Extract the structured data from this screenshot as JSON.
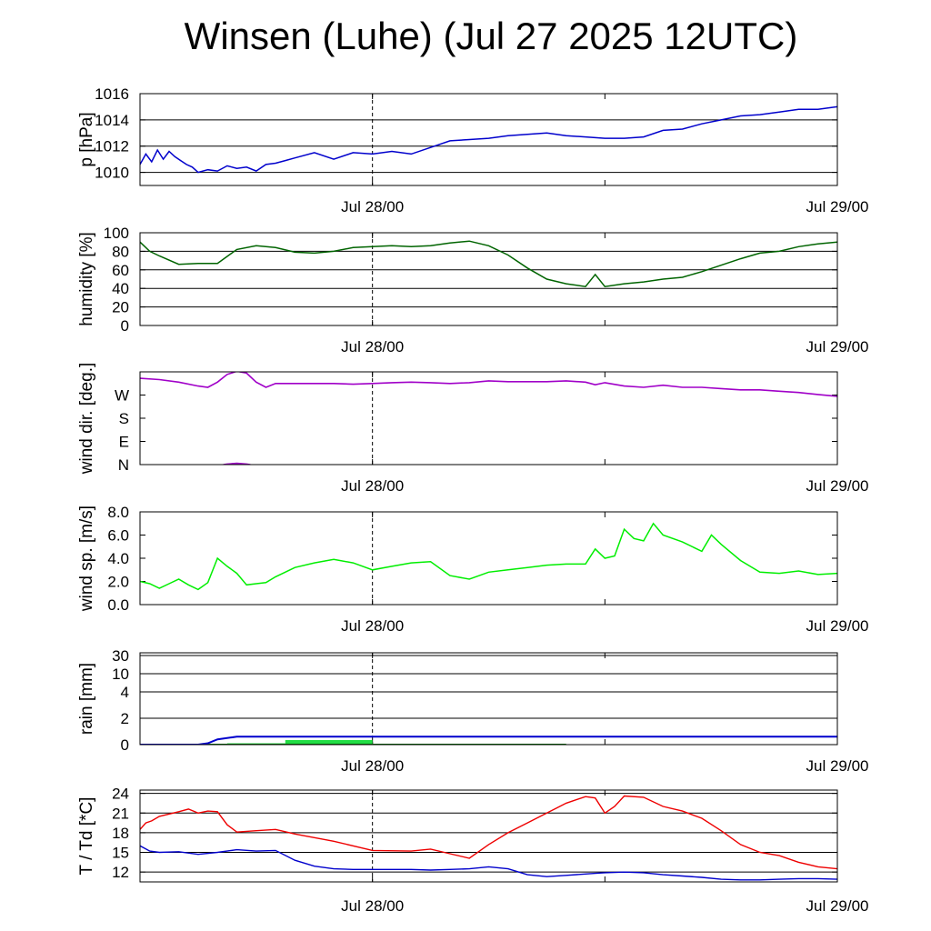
{
  "title": "Winsen (Luhe) (Jul 27 2025 12UTC)",
  "colors": {
    "pressure": "#0000cc",
    "humidity": "#006400",
    "wind_dir": "#a000c8",
    "wind_speed": "#00ee00",
    "rain_accum": "#0000cc",
    "rain_bar": "#22dd44",
    "rain_line": "#008000",
    "temperature": "#ee0000",
    "dewpoint": "#0000cc"
  },
  "chart_data": [
    {
      "type": "line",
      "id": "pressure",
      "ylabel": "p [hPa]",
      "xlabel": "",
      "x_ticks": [
        "Jul 28/00",
        "Jul 29/00"
      ],
      "x_range_hours": [
        0,
        36
      ],
      "ylim": [
        1009,
        1016
      ],
      "yticks": [
        1010,
        1012,
        1014,
        1016
      ],
      "series": [
        {
          "x": [
            0,
            0.3,
            0.6,
            0.9,
            1.2,
            1.5,
            1.8,
            2.1,
            2.4,
            2.7,
            3,
            3.5,
            4,
            4.5,
            5,
            5.5,
            6,
            6.5,
            7,
            7.5,
            8,
            9,
            10,
            11,
            12,
            13,
            14,
            15,
            16,
            17,
            18,
            19,
            20,
            21,
            22,
            23,
            24,
            25,
            26,
            27,
            28,
            29,
            30,
            31,
            32,
            33,
            34,
            35,
            36
          ],
          "values": [
            1010.6,
            1011.4,
            1010.8,
            1011.7,
            1011.0,
            1011.6,
            1011.2,
            1010.9,
            1010.6,
            1010.4,
            1010.0,
            1010.2,
            1010.1,
            1010.5,
            1010.3,
            1010.4,
            1010.1,
            1010.6,
            1010.7,
            1010.9,
            1011.1,
            1011.5,
            1011.0,
            1011.5,
            1011.4,
            1011.6,
            1011.4,
            1011.9,
            1012.4,
            1012.5,
            1012.6,
            1012.8,
            1012.9,
            1013.0,
            1012.8,
            1012.7,
            1012.6,
            1012.6,
            1012.7,
            1013.2,
            1013.3,
            1013.7,
            1014.0,
            1014.3,
            1014.4,
            1014.6,
            1014.8,
            1014.8,
            1015.0
          ]
        }
      ]
    },
    {
      "type": "line",
      "id": "humidity",
      "ylabel": "humidity [%]",
      "xlabel": "",
      "x_ticks": [
        "Jul 28/00",
        "Jul 29/00"
      ],
      "x_range_hours": [
        0,
        36
      ],
      "ylim": [
        0,
        100
      ],
      "yticks": [
        0,
        20,
        40,
        60,
        80,
        100
      ],
      "series": [
        {
          "x": [
            0,
            0.5,
            1,
            2,
            3,
            4,
            5,
            6,
            7,
            8,
            9,
            10,
            11,
            12,
            13,
            14,
            15,
            16,
            17,
            18,
            19,
            20,
            21,
            22,
            23,
            23.5,
            24,
            25,
            26,
            27,
            28,
            29,
            30,
            31,
            32,
            33,
            34,
            35,
            36
          ],
          "values": [
            90,
            80,
            75,
            66,
            67,
            67,
            82,
            86,
            84,
            79,
            78,
            80,
            84,
            85,
            86,
            85,
            86,
            89,
            91,
            86,
            76,
            62,
            50,
            45,
            42,
            55,
            42,
            45,
            47,
            50,
            52,
            58,
            65,
            72,
            78,
            80,
            85,
            88,
            90
          ]
        }
      ]
    },
    {
      "type": "line",
      "id": "wind_dir",
      "ylabel": "wind dir. [deg.]",
      "xlabel": "",
      "x_ticks": [
        "Jul 28/00",
        "Jul 29/00"
      ],
      "x_range_hours": [
        0,
        36
      ],
      "ylim": [
        0,
        360
      ],
      "ytick_labels": [
        "N",
        "E",
        "S",
        "W"
      ],
      "ytick_values": [
        0,
        90,
        180,
        270
      ],
      "series": [
        {
          "x": [
            0,
            1,
            2,
            3,
            3.5,
            4,
            4.5,
            5,
            5.5,
            6,
            6.5,
            7,
            8,
            9,
            10,
            11,
            12,
            13,
            14,
            15,
            16,
            17,
            18,
            19,
            20,
            21,
            22,
            23,
            23.5,
            24,
            25,
            26,
            27,
            28,
            29,
            30,
            31,
            32,
            33,
            34,
            35,
            36
          ],
          "values": [
            335,
            330,
            320,
            305,
            300,
            320,
            350,
            362,
            355,
            320,
            300,
            315,
            315,
            315,
            315,
            312,
            315,
            318,
            320,
            318,
            315,
            318,
            325,
            322,
            322,
            322,
            325,
            320,
            310,
            318,
            305,
            300,
            308,
            300,
            300,
            295,
            290,
            290,
            285,
            280,
            272,
            265
          ]
        }
      ]
    },
    {
      "type": "line",
      "id": "wind_speed",
      "ylabel": "wind sp. [m/s]",
      "xlabel": "",
      "x_ticks": [
        "Jul 28/00",
        "Jul 29/00"
      ],
      "x_range_hours": [
        0,
        36
      ],
      "ylim": [
        0,
        8
      ],
      "yticks": [
        "0.0",
        "2.0",
        "4.0",
        "6.0",
        "8.0"
      ],
      "series": [
        {
          "x": [
            0,
            0.5,
            1,
            1.5,
            2,
            2.5,
            3,
            3.5,
            4,
            4.5,
            5,
            5.5,
            6,
            6.5,
            7,
            8,
            9,
            10,
            11,
            12,
            13,
            14,
            15,
            16,
            17,
            18,
            19,
            20,
            21,
            22,
            23,
            23.5,
            24,
            24.5,
            25,
            25.5,
            26,
            26.5,
            27,
            28,
            29,
            29.5,
            30,
            31,
            32,
            33,
            34,
            35,
            36
          ],
          "values": [
            2.0,
            1.8,
            1.4,
            1.8,
            2.2,
            1.7,
            1.3,
            1.9,
            4.0,
            3.3,
            2.7,
            1.7,
            1.8,
            1.9,
            2.4,
            3.2,
            3.6,
            3.9,
            3.6,
            3.0,
            3.3,
            3.6,
            3.7,
            2.5,
            2.2,
            2.8,
            3.0,
            3.2,
            3.4,
            3.5,
            3.5,
            4.8,
            4.0,
            4.2,
            6.5,
            5.7,
            5.5,
            7.0,
            6.0,
            5.4,
            4.6,
            6.0,
            5.2,
            3.8,
            2.8,
            2.7,
            2.9,
            2.6,
            2.7
          ]
        }
      ]
    },
    {
      "type": "area",
      "id": "rain",
      "ylabel": "rain [mm]",
      "xlabel": "",
      "x_ticks": [
        "Jul 28/00",
        "Jul 29/00"
      ],
      "x_range_hours": [
        0,
        36
      ],
      "ylim": [
        0,
        30
      ],
      "yticks": [
        "0",
        "2",
        "4",
        "10",
        "30"
      ],
      "series": [
        {
          "name": "",
          "x": [
            0,
            3,
            3.5,
            4,
            5,
            36
          ],
          "values": [
            0,
            0,
            0.1,
            0.4,
            0.6,
            0.6
          ]
        },
        {
          "name": "",
          "x": [
            0.5,
            3,
            4.5,
            7.5,
            12,
            22
          ],
          "values": [
            0.02,
            0.05,
            0.1,
            0.35,
            0.05,
            0.01
          ]
        }
      ]
    },
    {
      "type": "line",
      "id": "temperature",
      "ylabel": "T / Td [*C]",
      "xlabel": "",
      "x_ticks": [
        "Jul 28/00",
        "Jul 29/00"
      ],
      "x_range_hours": [
        0,
        36
      ],
      "ylim": [
        10.5,
        24.5
      ],
      "yticks": [
        12,
        15,
        18,
        21,
        24
      ],
      "series": [
        {
          "name": "",
          "x": [
            0,
            0.3,
            0.6,
            1,
            2,
            2.5,
            3,
            3.5,
            4,
            4.5,
            5,
            6,
            7,
            8,
            10,
            12,
            14,
            15,
            16,
            17,
            18,
            19,
            20,
            21,
            22,
            23,
            23.5,
            24,
            24.5,
            25,
            26,
            27,
            28,
            29,
            30,
            31,
            32,
            33,
            34,
            35,
            36
          ],
          "values": [
            18.5,
            19.5,
            19.8,
            20.5,
            21.2,
            21.6,
            21.0,
            21.3,
            21.2,
            19.2,
            18.1,
            18.3,
            18.5,
            17.8,
            16.7,
            15.3,
            15.2,
            15.5,
            14.8,
            14.1,
            16.2,
            18.0,
            19.5,
            21.0,
            22.5,
            23.5,
            23.3,
            21.0,
            22.0,
            23.6,
            23.4,
            22.0,
            21.3,
            20.2,
            18.3,
            16.2,
            15.0,
            14.5,
            13.5,
            12.8,
            12.5
          ]
        },
        {
          "name": "",
          "x": [
            0,
            0.5,
            1,
            2,
            3,
            4,
            5,
            6,
            7,
            8,
            9,
            10,
            11,
            12,
            13,
            14,
            15,
            16,
            17,
            18,
            19,
            20,
            21,
            22,
            23,
            23.5,
            24,
            25,
            26,
            27,
            28,
            29,
            30,
            31,
            32,
            33,
            34,
            35,
            36
          ],
          "values": [
            16.0,
            15.2,
            15.0,
            15.1,
            14.7,
            15.0,
            15.4,
            15.2,
            15.3,
            13.8,
            12.9,
            12.5,
            12.4,
            12.4,
            12.4,
            12.4,
            12.3,
            12.4,
            12.5,
            12.8,
            12.5,
            11.6,
            11.3,
            11.5,
            11.7,
            11.8,
            11.9,
            12.0,
            11.9,
            11.6,
            11.4,
            11.2,
            10.9,
            10.8,
            10.8,
            10.9,
            11.0,
            11.0,
            10.9
          ]
        }
      ]
    }
  ]
}
